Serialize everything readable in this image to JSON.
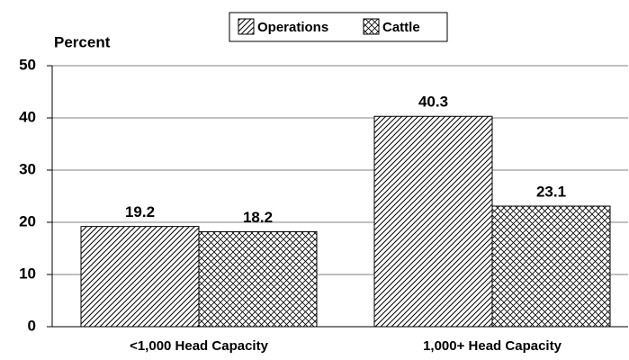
{
  "chart_data": {
    "type": "bar",
    "y_label": "Percent",
    "categories": [
      "<1,000 Head Capacity",
      "1,000+ Head Capacity"
    ],
    "series": [
      {
        "name": "Operations",
        "color": "#000000",
        "pattern": "diagonal",
        "values": [
          19.2,
          40.3
        ]
      },
      {
        "name": "Cattle",
        "color": "#000000",
        "pattern": "cross",
        "values": [
          18.2,
          23.1
        ]
      }
    ],
    "ylim": [
      0,
      50
    ],
    "yticks": [
      0,
      10,
      20,
      30,
      40,
      50
    ],
    "grid": true,
    "legend": "top"
  }
}
